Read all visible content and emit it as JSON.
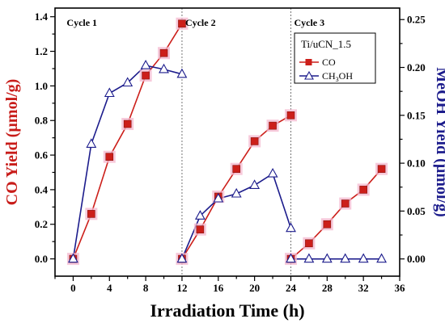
{
  "chart_data": {
    "type": "line",
    "xlabel": "Irradiation Time (h)",
    "ylabel_left": "CO Yield (µmol/g)",
    "ylabel_right": "MeOH Yield (µmol/g)",
    "xlim": [
      -2,
      36
    ],
    "ylim_left": [
      -0.1,
      1.45
    ],
    "ylim_right": [
      -0.018,
      0.262
    ],
    "xticks": [
      "0",
      "4",
      "8",
      "12",
      "16",
      "20",
      "24",
      "28",
      "32",
      "36"
    ],
    "yticks_left": [
      "0.0",
      "0.2",
      "0.4",
      "0.6",
      "0.8",
      "1.0",
      "1.2",
      "1.4"
    ],
    "yticks_right": [
      "0.00",
      "0.05",
      "0.10",
      "0.15",
      "0.20",
      "0.25"
    ],
    "cycle_labels": [
      "Cycle 1",
      "Cycle 2",
      "Cycle 3"
    ],
    "cycle_dividers": [
      12,
      24
    ],
    "legend_title": "Ti/uCN_1.5",
    "legend_position": "top-right",
    "grid": false,
    "series": [
      {
        "name": "CO",
        "axis": "left",
        "color": "#cc1f1a",
        "marker": "square",
        "segments": [
          [
            [
              0,
              0.0
            ],
            [
              2,
              0.26
            ],
            [
              4,
              0.59
            ],
            [
              6,
              0.78
            ],
            [
              8,
              1.06
            ],
            [
              10,
              1.19
            ],
            [
              12,
              1.36
            ]
          ],
          [
            [
              12,
              0.0
            ],
            [
              14,
              0.17
            ],
            [
              16,
              0.36
            ],
            [
              18,
              0.52
            ],
            [
              20,
              0.68
            ],
            [
              22,
              0.77
            ],
            [
              24,
              0.83
            ]
          ],
          [
            [
              24,
              0.0
            ],
            [
              26,
              0.09
            ],
            [
              28,
              0.2
            ],
            [
              30,
              0.32
            ],
            [
              32,
              0.4
            ],
            [
              34,
              0.52
            ]
          ]
        ]
      },
      {
        "name": "CH3OH",
        "name_main": "CH",
        "name_sub": "3",
        "name_tail": "OH",
        "axis": "right",
        "color": "#1c1c8c",
        "marker": "triangle-open",
        "segments": [
          [
            [
              0,
              0.0
            ],
            [
              2,
              0.12
            ],
            [
              4,
              0.173
            ],
            [
              6,
              0.184
            ],
            [
              8,
              0.202
            ],
            [
              10,
              0.198
            ],
            [
              12,
              0.193
            ]
          ],
          [
            [
              12,
              0.0
            ],
            [
              14,
              0.045
            ],
            [
              16,
              0.063
            ],
            [
              18,
              0.068
            ],
            [
              20,
              0.077
            ],
            [
              22,
              0.089
            ],
            [
              24,
              0.032
            ]
          ],
          [
            [
              24,
              0.0
            ],
            [
              26,
              0.0
            ],
            [
              28,
              0.0
            ],
            [
              30,
              0.0
            ],
            [
              32,
              0.0
            ],
            [
              34,
              0.0
            ]
          ]
        ]
      }
    ]
  }
}
